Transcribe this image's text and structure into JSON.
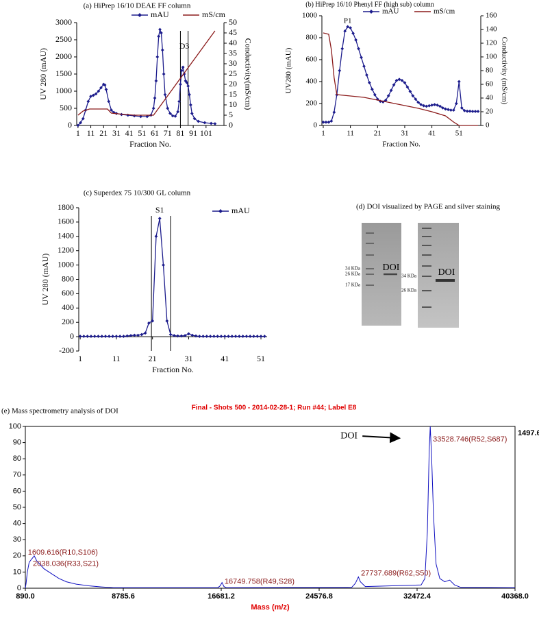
{
  "chart_data": [
    {
      "type": "line",
      "title": "(a) HiPrep 16/10 DEAE FF column",
      "xlabel": "Fraction No.",
      "ylabel": "UV 280 (mAU)",
      "y2label": "Conductivity(mS/cm)",
      "xlim": [
        0,
        115
      ],
      "xticks": [
        1,
        11,
        21,
        31,
        41,
        51,
        61,
        71,
        81,
        91,
        101
      ],
      "ylim": [
        0,
        3000
      ],
      "yticks": [
        0,
        500,
        1000,
        1500,
        2000,
        2500,
        3000
      ],
      "y2lim": [
        0,
        50
      ],
      "y2ticks": [
        0,
        5,
        10,
        15,
        20,
        25,
        30,
        35,
        40,
        45,
        50
      ],
      "legend": "top",
      "series": [
        {
          "name": "mAU",
          "color": "#1c1c8c",
          "marker": "diamond",
          "x": [
            1,
            3,
            5,
            7,
            9,
            11,
            13,
            15,
            17,
            19,
            21,
            22,
            23,
            25,
            27,
            29,
            31,
            35,
            40,
            45,
            50,
            55,
            58,
            60,
            61,
            62,
            63,
            64,
            65,
            66,
            67,
            68,
            69,
            71,
            73,
            75,
            77,
            79,
            80,
            81,
            82,
            83,
            84,
            85,
            86,
            87,
            88,
            89,
            90,
            92,
            95,
            100,
            105,
            108
          ],
          "values": [
            0,
            80,
            200,
            450,
            700,
            850,
            880,
            920,
            1000,
            1100,
            1200,
            1180,
            1050,
            700,
            450,
            380,
            350,
            320,
            300,
            280,
            260,
            260,
            300,
            500,
            800,
            1300,
            2000,
            2600,
            2800,
            2700,
            2200,
            1500,
            900,
            500,
            350,
            280,
            270,
            400,
            700,
            1200,
            1600,
            1700,
            1500,
            1300,
            1250,
            1150,
            900,
            600,
            350,
            200,
            120,
            80,
            60,
            50
          ]
        },
        {
          "name": "mS/cm",
          "color": "#8b1a1a",
          "axis": "y2",
          "x": [
            1,
            5,
            10,
            15,
            20,
            24,
            27,
            35,
            45,
            55,
            60,
            108
          ],
          "values": [
            5,
            7,
            8,
            8,
            8,
            8,
            6,
            5.5,
            5,
            5,
            5,
            46
          ]
        }
      ],
      "bands": [
        81,
        87
      ],
      "annotations": [
        {
          "text": "D3",
          "x": 84,
          "y": 2300
        }
      ]
    },
    {
      "type": "line",
      "title": "(b) HiPrep 16/10 Phenyl FF (high sub) column",
      "xlabel": "Fraction No.",
      "ylabel": "UV280 (mAU)",
      "y2label": "Conductivity (mS/cm)",
      "xlim": [
        0.5,
        59
      ],
      "xticks": [
        1,
        11,
        21,
        31,
        41,
        51
      ],
      "ylim": [
        0,
        1000
      ],
      "yticks": [
        0,
        200,
        400,
        600,
        800,
        1000
      ],
      "y2lim": [
        0,
        160
      ],
      "y2ticks": [
        0,
        20,
        40,
        60,
        80,
        100,
        120,
        140,
        160
      ],
      "legend": "top",
      "series": [
        {
          "name": "mAU",
          "color": "#1c1c8c",
          "marker": "diamond",
          "x": [
            1,
            2,
            3,
            4,
            5,
            6,
            7,
            8,
            9,
            10,
            11,
            12,
            13,
            14,
            15,
            16,
            17,
            18,
            19,
            20,
            21,
            22,
            23,
            24,
            25,
            26,
            27,
            28,
            29,
            30,
            31,
            32,
            33,
            34,
            35,
            36,
            37,
            38,
            39,
            40,
            41,
            42,
            43,
            44,
            45,
            46,
            47,
            48,
            49,
            50,
            51,
            52,
            53,
            54,
            55,
            56,
            57,
            58
          ],
          "values": [
            30,
            30,
            30,
            40,
            120,
            280,
            500,
            700,
            860,
            900,
            890,
            840,
            780,
            700,
            620,
            540,
            460,
            390,
            330,
            280,
            240,
            220,
            215,
            230,
            270,
            320,
            370,
            410,
            420,
            410,
            390,
            350,
            310,
            270,
            240,
            210,
            190,
            180,
            175,
            180,
            185,
            190,
            185,
            175,
            160,
            150,
            145,
            140,
            140,
            200,
            400,
            160,
            135,
            130,
            130,
            128,
            128,
            128
          ]
        },
        {
          "name": "mS/cm",
          "color": "#8b1a1a",
          "axis": "y2",
          "x": [
            1,
            3,
            4,
            5,
            6,
            11,
            16,
            21,
            26,
            31,
            36,
            41,
            46,
            49,
            51,
            58
          ],
          "values": [
            135,
            133,
            110,
            70,
            45,
            43,
            41,
            37,
            33,
            29,
            25,
            20,
            14,
            5,
            0,
            0
          ]
        }
      ],
      "annotations": [
        {
          "text": "P1",
          "x": 10,
          "y": 950
        }
      ]
    },
    {
      "type": "line",
      "title": "(c) Superdex 75 10/300 GL column",
      "xlabel": "Fraction No.",
      "ylabel": "UV 280 (mAU)",
      "xlim": [
        0.6,
        52.7
      ],
      "xticks": [
        1,
        11,
        21,
        31,
        41,
        51
      ],
      "ylim": [
        -200,
        1800
      ],
      "yticks": [
        -200,
        0,
        200,
        400,
        600,
        800,
        1000,
        1200,
        1400,
        1600,
        1800
      ],
      "legend": "top-right",
      "series": [
        {
          "name": "mAU",
          "color": "#1c1c8c",
          "marker": "diamond",
          "x": [
            1,
            2,
            3,
            4,
            5,
            6,
            7,
            8,
            9,
            10,
            11,
            12,
            13,
            14,
            15,
            16,
            17,
            18,
            19,
            20,
            21,
            22,
            23,
            24,
            25,
            26,
            27,
            28,
            29,
            30,
            31,
            32,
            33,
            34,
            35,
            36,
            37,
            38,
            39,
            40,
            41,
            42,
            43,
            44,
            45,
            46,
            47,
            48,
            49,
            50,
            51,
            52
          ],
          "values": [
            5,
            5,
            5,
            5,
            5,
            5,
            5,
            5,
            5,
            5,
            5,
            5,
            5,
            10,
            15,
            20,
            20,
            30,
            50,
            190,
            220,
            1400,
            1650,
            1000,
            220,
            30,
            15,
            10,
            10,
            15,
            40,
            20,
            10,
            5,
            5,
            5,
            5,
            5,
            5,
            5,
            5,
            5,
            5,
            5,
            5,
            5,
            5,
            5,
            5,
            5,
            5,
            5
          ]
        }
      ],
      "bands": [
        20.7,
        26
      ],
      "annotations": [
        {
          "text": "S1",
          "x": 23,
          "y": 1760
        }
      ]
    },
    {
      "type": "line",
      "title": "(e) Mass spectrometry analysis of DOI",
      "subtitle": "Final - Shots 500 - 2014-02-28-1; Run #44; Label E8",
      "xlabel": "Mass (m/z)",
      "max_intensity": 1497.6,
      "frame": true,
      "xlim": [
        890,
        40368
      ],
      "xticks": [
        {
          "value": 890,
          "label": "890.0"
        },
        {
          "value": 8785.6,
          "label": "8785.6"
        },
        {
          "value": 16681.2,
          "label": "16681.2"
        },
        {
          "value": 24576.8,
          "label": "24576.8"
        },
        {
          "value": 32472.4,
          "label": "32472.4"
        },
        {
          "value": 40368,
          "label": "40368.0"
        }
      ],
      "ylim": [
        0,
        100
      ],
      "yticks": [
        0,
        10,
        20,
        30,
        40,
        50,
        60,
        70,
        80,
        90,
        100
      ],
      "series": [
        {
          "color": "#1010c0",
          "x": [
            890,
            950,
            1050,
            1200,
            1400,
            1610,
            1800,
            2040,
            2400,
            3000,
            3600,
            4200,
            5000,
            6000,
            7000,
            8000,
            16400,
            16600,
            16750,
            16900,
            17100,
            27200,
            27500,
            27740,
            27900,
            28300,
            32800,
            33100,
            33300,
            33450,
            33530,
            33650,
            33800,
            34000,
            34300,
            34700,
            35100,
            35500,
            36000,
            40368
          ],
          "values": [
            0,
            3,
            10,
            16,
            18,
            20,
            17,
            15,
            12,
            9,
            6,
            4,
            2.5,
            1.5,
            0.8,
            0.3,
            0.3,
            1.5,
            3.5,
            1,
            0.3,
            0.5,
            3,
            7,
            4,
            1,
            2,
            6,
            35,
            85,
            100,
            80,
            45,
            15,
            6,
            4,
            5,
            2,
            0.5,
            0.3
          ]
        }
      ],
      "annotations": [
        {
          "text": "1609.616(R10,S106)",
          "x": 1100,
          "y": 22
        },
        {
          "text": "2038.036(R33,S21)",
          "x": 1500,
          "y": 15
        },
        {
          "text": "16749.758(R49,S28)",
          "x": 16950,
          "y": 4
        },
        {
          "text": "27737.689(R62,S50)",
          "x": 27950,
          "y": 9
        },
        {
          "text": "33528.746(R52,S687)",
          "x": 33750,
          "y": 92
        },
        {
          "text": "DOI",
          "x": 26300,
          "y": 94,
          "arrow": true
        }
      ]
    }
  ],
  "gel": {
    "title": "(d) DOI visualized by PAGE and silver staining",
    "left_gel": {
      "markers": [
        "34 KDa",
        "26 KDa",
        "17 KDa"
      ],
      "band_label": "DOI"
    },
    "right_gel": {
      "markers": [
        "34 KDa",
        "26 KDa"
      ],
      "band_label": "DOI"
    }
  }
}
